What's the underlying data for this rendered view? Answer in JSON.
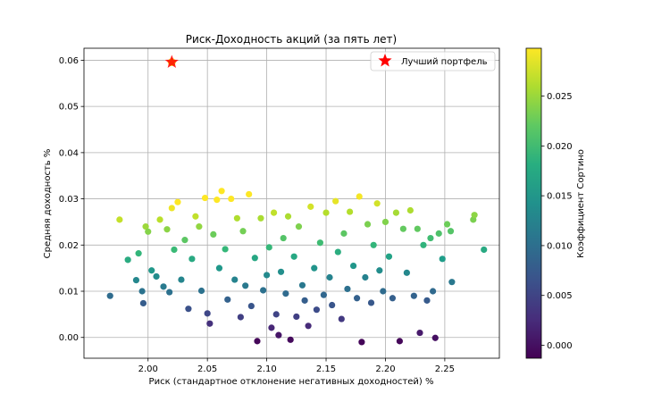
{
  "chart_data": {
    "type": "scatter",
    "title": "Риск-Доходность акций (за пять лет)",
    "xlabel": "Риск (стандартное отклонение негативных доходностей) %",
    "ylabel": "Средняя доходность %",
    "xlim": [
      1.946,
      2.296
    ],
    "ylim": [
      -0.0045,
      0.0626
    ],
    "xticks": [
      2.0,
      2.05,
      2.1,
      2.15,
      2.2,
      2.25
    ],
    "xtick_labels": [
      "2.00",
      "2.05",
      "2.10",
      "2.15",
      "2.20",
      "2.25"
    ],
    "yticks": [
      0.0,
      0.01,
      0.02,
      0.03,
      0.04,
      0.05,
      0.06
    ],
    "ytick_labels": [
      "0.00",
      "0.01",
      "0.02",
      "0.03",
      "0.04",
      "0.05",
      "0.06"
    ],
    "grid": true,
    "colormap": "viridis",
    "colorbar": {
      "label": "Коэффициент Сортино",
      "range": [
        -0.0013,
        0.0298
      ],
      "ticks": [
        0.0,
        0.005,
        0.01,
        0.015,
        0.02,
        0.025
      ],
      "tick_labels": [
        "0.000",
        "0.005",
        "0.010",
        "0.015",
        "0.020",
        "0.025"
      ]
    },
    "legend": {
      "placement": "top-right",
      "entries": [
        "Лучший портфель"
      ]
    },
    "best_portfolio": {
      "name": "Лучший портфель",
      "x": 2.02,
      "y": 0.0596,
      "sortino": 0.0295,
      "marker": "star",
      "color": "#ff0000"
    },
    "points_sample": [
      [
        1.968,
        0.009
      ],
      [
        1.976,
        0.0255
      ],
      [
        1.983,
        0.0168
      ],
      [
        1.99,
        0.0124
      ],
      [
        1.992,
        0.0182
      ],
      [
        1.995,
        0.01
      ],
      [
        1.996,
        0.0074
      ],
      [
        1.998,
        0.024
      ],
      [
        2.0,
        0.0229
      ],
      [
        2.003,
        0.0145
      ],
      [
        2.007,
        0.0132
      ],
      [
        2.01,
        0.0255
      ],
      [
        2.013,
        0.011
      ],
      [
        2.016,
        0.0234
      ],
      [
        2.018,
        0.0098
      ],
      [
        2.02,
        0.028
      ],
      [
        2.022,
        0.019
      ],
      [
        2.025,
        0.0293
      ],
      [
        2.028,
        0.0125
      ],
      [
        2.031,
        0.0211
      ],
      [
        2.034,
        0.0062
      ],
      [
        2.037,
        0.017
      ],
      [
        2.04,
        0.0262
      ],
      [
        2.043,
        0.024
      ],
      [
        2.045,
        0.0101
      ],
      [
        2.048,
        0.0302
      ],
      [
        2.05,
        0.0052
      ],
      [
        2.052,
        0.003
      ],
      [
        2.055,
        0.0223
      ],
      [
        2.058,
        0.0298
      ],
      [
        2.06,
        0.015
      ],
      [
        2.062,
        0.0317
      ],
      [
        2.065,
        0.0191
      ],
      [
        2.067,
        0.0082
      ],
      [
        2.07,
        0.03
      ],
      [
        2.073,
        0.0125
      ],
      [
        2.075,
        0.0258
      ],
      [
        2.078,
        0.0044
      ],
      [
        2.08,
        0.023
      ],
      [
        2.082,
        0.0112
      ],
      [
        2.085,
        0.031
      ],
      [
        2.087,
        0.0068
      ],
      [
        2.09,
        0.0172
      ],
      [
        2.092,
        -0.0008
      ],
      [
        2.095,
        0.0258
      ],
      [
        2.097,
        0.0102
      ],
      [
        2.1,
        0.0135
      ],
      [
        2.102,
        0.0195
      ],
      [
        2.104,
        0.0021
      ],
      [
        2.106,
        0.027
      ],
      [
        2.108,
        0.005
      ],
      [
        2.11,
        0.0005
      ],
      [
        2.112,
        0.0142
      ],
      [
        2.114,
        0.0215
      ],
      [
        2.116,
        0.0095
      ],
      [
        2.118,
        0.0262
      ],
      [
        2.12,
        -0.0005
      ],
      [
        2.123,
        0.0175
      ],
      [
        2.125,
        0.0045
      ],
      [
        2.127,
        0.024
      ],
      [
        2.13,
        0.0113
      ],
      [
        2.132,
        0.008
      ],
      [
        2.135,
        0.0025
      ],
      [
        2.137,
        0.0283
      ],
      [
        2.14,
        0.015
      ],
      [
        2.142,
        0.006
      ],
      [
        2.145,
        0.0205
      ],
      [
        2.148,
        0.0092
      ],
      [
        2.15,
        0.027
      ],
      [
        2.153,
        0.013
      ],
      [
        2.155,
        0.007
      ],
      [
        2.158,
        0.0295
      ],
      [
        2.16,
        0.0185
      ],
      [
        2.163,
        0.004
      ],
      [
        2.165,
        0.0225
      ],
      [
        2.168,
        0.0105
      ],
      [
        2.17,
        0.0272
      ],
      [
        2.173,
        0.0155
      ],
      [
        2.176,
        0.0085
      ],
      [
        2.178,
        0.0305
      ],
      [
        2.18,
        -0.001
      ],
      [
        2.183,
        0.013
      ],
      [
        2.185,
        0.0245
      ],
      [
        2.188,
        0.0075
      ],
      [
        2.19,
        0.02
      ],
      [
        2.193,
        0.029
      ],
      [
        2.195,
        0.0145
      ],
      [
        2.198,
        0.01
      ],
      [
        2.2,
        0.025
      ],
      [
        2.203,
        0.0175
      ],
      [
        2.206,
        0.0085
      ],
      [
        2.209,
        0.027
      ],
      [
        2.212,
        -0.0008
      ],
      [
        2.215,
        0.0235
      ],
      [
        2.218,
        0.014
      ],
      [
        2.221,
        0.0275
      ],
      [
        2.224,
        0.009
      ],
      [
        2.227,
        0.0235
      ],
      [
        2.229,
        0.001
      ],
      [
        2.232,
        0.02
      ],
      [
        2.235,
        0.008
      ],
      [
        2.238,
        0.0215
      ],
      [
        2.24,
        0.01
      ],
      [
        2.242,
        -0.0001
      ],
      [
        2.245,
        0.0225
      ],
      [
        2.248,
        0.017
      ],
      [
        2.252,
        0.0245
      ],
      [
        2.255,
        0.023
      ],
      [
        2.256,
        0.012
      ],
      [
        2.274,
        0.0255
      ],
      [
        2.275,
        0.0265
      ],
      [
        2.283,
        0.019
      ]
    ]
  }
}
